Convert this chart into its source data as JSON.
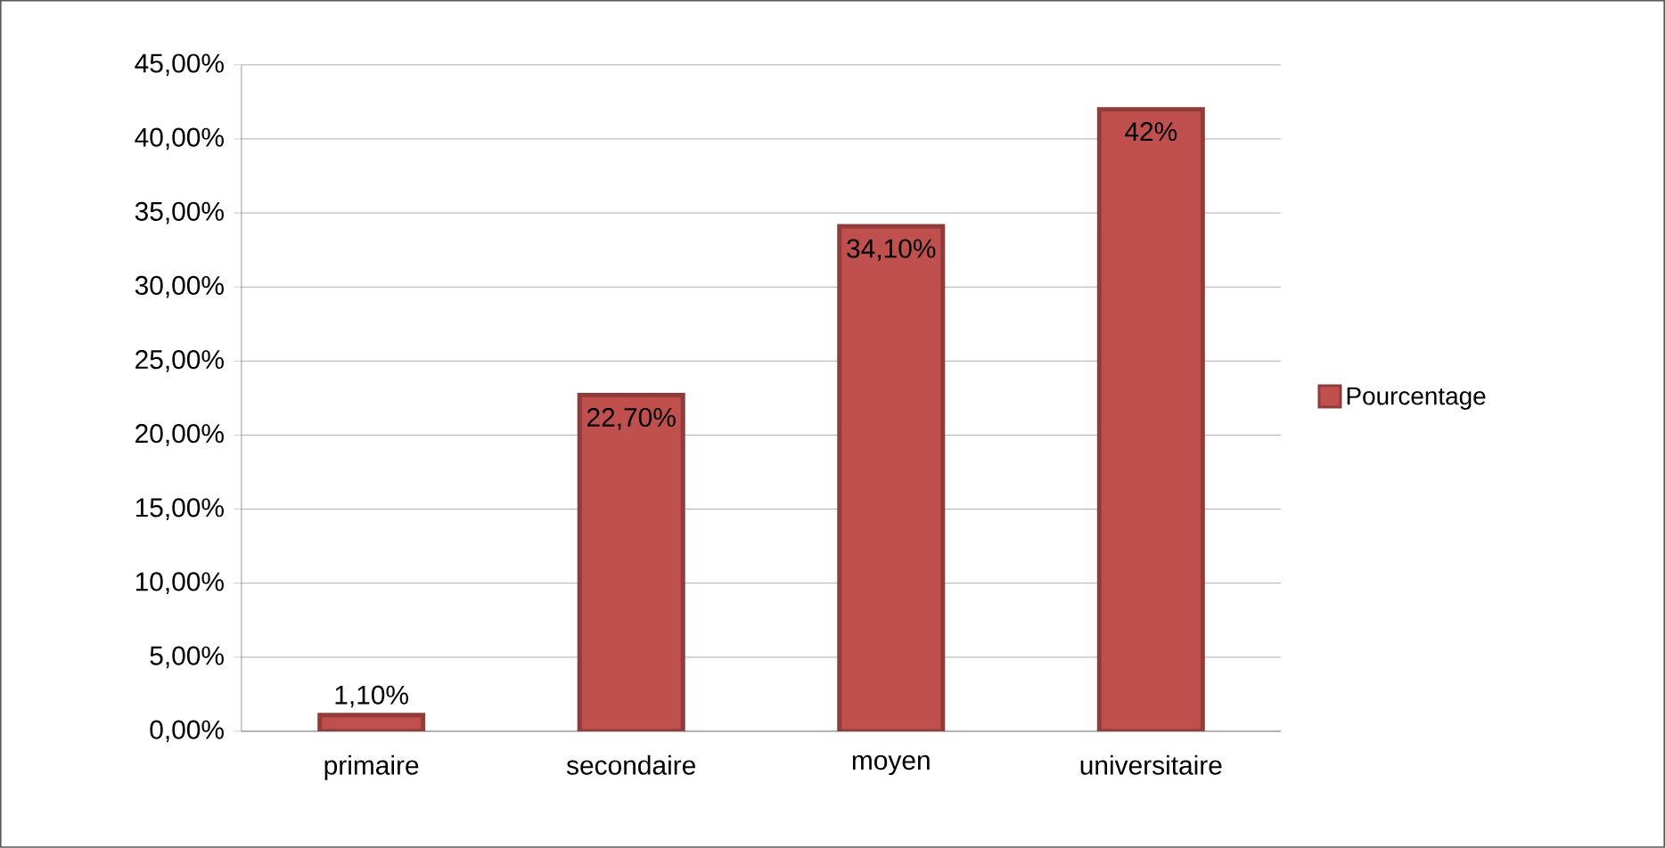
{
  "chart_data": {
    "type": "bar",
    "categories": [
      "primaire",
      "secondaire",
      "moyen",
      "universitaire"
    ],
    "series": [
      {
        "name": "Pourcentage",
        "color": "#c0504d",
        "values": [
          1.1,
          22.7,
          34.1,
          42
        ],
        "value_labels": [
          "1,10%",
          "22,70%",
          "34,10%",
          "42%"
        ]
      }
    ],
    "ylim": [
      0,
      45
    ],
    "yticks": [
      {
        "value": 0,
        "label": "0,00%"
      },
      {
        "value": 5,
        "label": "5,00%"
      },
      {
        "value": 10,
        "label": "10,00%"
      },
      {
        "value": 15,
        "label": "15,00%"
      },
      {
        "value": 20,
        "label": "20,00%"
      },
      {
        "value": 25,
        "label": "25,00%"
      },
      {
        "value": 30,
        "label": "30,00%"
      },
      {
        "value": 35,
        "label": "35,00%"
      },
      {
        "value": 40,
        "label": "40,00%"
      },
      {
        "value": 45,
        "label": "45,00%"
      }
    ],
    "grid": "y",
    "legend": "right"
  }
}
